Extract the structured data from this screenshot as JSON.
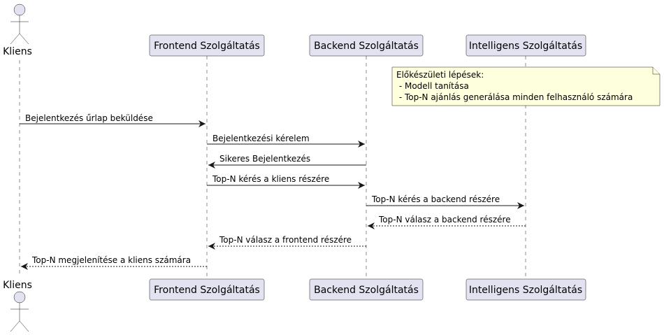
{
  "diagram": {
    "type": "sequence",
    "participants": [
      {
        "id": "kliens",
        "label": "Kliens",
        "kind": "actor"
      },
      {
        "id": "frontend",
        "label": "Frontend Szolgáltatás",
        "kind": "participant"
      },
      {
        "id": "backend",
        "label": "Backend Szolgáltatás",
        "kind": "participant"
      },
      {
        "id": "intelligens",
        "label": "Intelligens Szolgáltatás",
        "kind": "participant"
      }
    ],
    "note": {
      "over": "intelligens",
      "lines": [
        "Előkészületi lépések:",
        " - Modell tanítása",
        " - Top-N ajánlás generálása minden felhasználó számára"
      ]
    },
    "messages": [
      {
        "from": "kliens",
        "to": "frontend",
        "label": "Bejelentkezés űrlap beküldése",
        "style": "solid"
      },
      {
        "from": "frontend",
        "to": "backend",
        "label": "Bejelentkezési kérelem",
        "style": "solid"
      },
      {
        "from": "backend",
        "to": "frontend",
        "label": "Sikeres Bejelentkezés",
        "style": "solid"
      },
      {
        "from": "frontend",
        "to": "backend",
        "label": "Top-N kérés a kliens részére",
        "style": "solid"
      },
      {
        "from": "backend",
        "to": "intelligens",
        "label": "Top-N kérés a backend részére",
        "style": "solid"
      },
      {
        "from": "intelligens",
        "to": "backend",
        "label": "Top-N válasz a backend részére",
        "style": "dashed"
      },
      {
        "from": "backend",
        "to": "frontend",
        "label": "Top-N válasz a frontend részére",
        "style": "dashed"
      },
      {
        "from": "frontend",
        "to": "kliens",
        "label": "Top-N megjelenítése a kliens számára",
        "style": "dashed"
      }
    ]
  }
}
